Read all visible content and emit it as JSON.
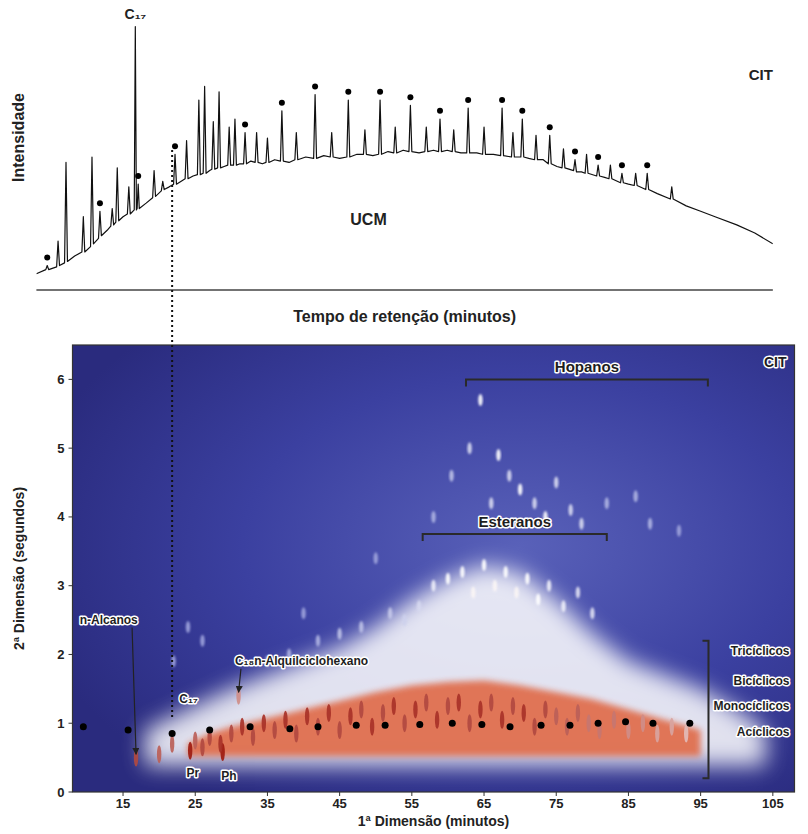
{
  "chart_data": [
    {
      "type": "line",
      "title": "CIT",
      "ylabel": "Intensidade",
      "xlabel": "Tempo de retenção (minutos)",
      "xlim": [
        3,
        105
      ],
      "ylim": [
        0,
        105
      ],
      "tick_labels": false,
      "grid": false,
      "series": [
        {
          "type": "line",
          "color": "#111111",
          "x": [
            3,
            4.3,
            4.5,
            4.7,
            5.8,
            6.0,
            6.2,
            6.9,
            7.1,
            7.3,
            8.3,
            9.3,
            9.5,
            9.7,
            10.5,
            10.7,
            10.9,
            11.6,
            11.8,
            12.0,
            12.8,
            13.3,
            13.5,
            13.7,
            14.0,
            14.2,
            14.4,
            15.0,
            15.6,
            15.8,
            16.0,
            16.55,
            16.7,
            16.85,
            16.95,
            17.1,
            17.25,
            18.2,
            19.1,
            19.3,
            19.5,
            20.3,
            20.5,
            20.7,
            21.4,
            22.0,
            22.2,
            22.4,
            23.0,
            23.6,
            23.8,
            24.0,
            24.7,
            25.3,
            25.5,
            25.7,
            26.1,
            26.3,
            26.5,
            27.0,
            27.3,
            27.5,
            27.7,
            28.1,
            28.3,
            28.5,
            29.0,
            29.5,
            29.7,
            29.9,
            30.3,
            30.5,
            30.7,
            31.2,
            31.7,
            31.9,
            32.1,
            32.7,
            33.3,
            33.5,
            33.7,
            34.3,
            34.8,
            35.0,
            35.2,
            36.0,
            36.8,
            37.0,
            37.2,
            38.0,
            38.8,
            39.0,
            39.2,
            40.3,
            41.4,
            41.6,
            41.8,
            42.8,
            43.7,
            43.9,
            44.1,
            45.0,
            46.0,
            46.2,
            46.4,
            47.4,
            48.3,
            48.5,
            48.7,
            49.6,
            50.4,
            50.6,
            50.8,
            51.7,
            52.5,
            52.7,
            52.9,
            53.8,
            54.6,
            54.8,
            55.0,
            56.0,
            56.8,
            57.0,
            57.2,
            58.0,
            58.7,
            58.9,
            59.1,
            59.9,
            60.6,
            60.8,
            61.0,
            61.8,
            62.6,
            62.8,
            63.0,
            64.0,
            64.8,
            65.0,
            65.2,
            66.3,
            67.3,
            67.5,
            67.7,
            68.8,
            69.0,
            69.2,
            70.1,
            70.3,
            70.5,
            71.2,
            72.0,
            72.2,
            72.4,
            73.2,
            73.9,
            74.1,
            74.3,
            75.1,
            75.8,
            76.0,
            76.2,
            77.4,
            77.6,
            77.8,
            78.5,
            79.0,
            79.2,
            79.4,
            80.6,
            80.8,
            81.0,
            81.7,
            82.3,
            82.5,
            82.7,
            83.9,
            84.1,
            84.3,
            85.0,
            85.8,
            86.0,
            86.2,
            87.4,
            87.6,
            87.8,
            89.0,
            90.8,
            91.0,
            91.2,
            93.0,
            95,
            97,
            100,
            102.5,
            105
          ],
          "values": [
            6,
            7.5,
            9,
            7.5,
            8.5,
            18,
            9,
            10,
            47,
            10.5,
            12.5,
            14,
            27,
            14,
            16,
            49,
            17,
            19,
            29,
            20,
            22,
            23.5,
            30,
            24,
            25,
            45,
            25.5,
            27,
            28,
            38,
            28,
            29.5,
            97,
            29.5,
            30,
            39,
            30,
            32,
            34,
            44,
            34.5,
            36.5,
            40,
            37,
            38,
            39,
            50,
            39,
            40,
            41,
            55,
            41,
            42,
            42.5,
            70,
            42.5,
            43,
            75,
            43,
            44,
            44.5,
            62,
            44.5,
            45,
            73,
            45,
            45.5,
            46,
            60,
            46,
            46,
            63,
            46,
            46.5,
            46.5,
            58,
            46.5,
            47.5,
            47,
            58,
            47,
            46.5,
            47,
            56,
            47,
            48,
            47.5,
            66,
            47.5,
            47,
            48,
            58,
            48,
            49,
            48.5,
            72,
            48.5,
            49.5,
            49,
            58,
            49,
            48.5,
            49,
            70,
            49,
            50,
            50,
            59,
            50,
            49.5,
            50,
            70,
            50,
            51,
            50.5,
            60,
            50.5,
            51.5,
            51,
            68,
            51,
            50.5,
            51,
            60,
            51,
            51.5,
            51,
            63,
            51,
            51.5,
            51,
            59,
            51,
            50.5,
            50.5,
            67,
            50.5,
            50.5,
            50,
            60,
            50,
            50,
            49.5,
            67,
            49.5,
            49,
            58,
            49,
            49,
            63,
            49,
            48.5,
            48,
            57,
            48,
            48,
            46.5,
            57,
            46.5,
            45.5,
            45,
            52,
            45,
            44,
            48,
            43.5,
            43.5,
            43,
            50,
            43,
            42,
            46,
            42,
            41.5,
            41,
            46,
            41,
            39.5,
            43,
            39.5,
            39,
            38.5,
            43,
            38.5,
            37,
            43,
            37,
            35.5,
            33.5,
            38,
            33.5,
            31,
            29,
            27,
            24,
            21,
            17
          ]
        },
        {
          "type": "scatter",
          "marker": "circle",
          "color": "#000000",
          "x": [
            4.5,
            11.8,
            17.1,
            22.2,
            31.9,
            37.0,
            41.6,
            46.2,
            50.6,
            54.8,
            58.9,
            62.8,
            67.5,
            70.3,
            74.1,
            77.6,
            80.8,
            84.1,
            87.6
          ],
          "values": [
            12,
            32,
            42,
            53,
            61,
            69,
            75,
            73,
            73,
            71,
            66,
            70,
            70,
            66,
            60,
            51,
            49,
            46,
            46
          ]
        }
      ],
      "annotations": [
        {
          "text": "C₁₇",
          "x": 16.7,
          "y": 100
        },
        {
          "text": "UCM",
          "x": 49,
          "y": 24
        }
      ],
      "dotted_line_x": 21.8
    },
    {
      "type": "scatter",
      "title": "CIT",
      "xlabel": "1ª Dimensão (minutos)",
      "ylabel": "2ª Dimensão (segundos)",
      "xlim": [
        8,
        108
      ],
      "ylim": [
        0,
        6.5
      ],
      "xticks": [
        15,
        25,
        35,
        45,
        55,
        65,
        75,
        85,
        95,
        105
      ],
      "yticks": [
        0,
        1,
        2,
        3,
        4,
        5,
        6
      ],
      "zlim": [
        0,
        1
      ],
      "grid": false,
      "series": [
        {
          "type": "area",
          "color": "#ffffff",
          "x": [
            18,
            22,
            26,
            30,
            35,
            40,
            45,
            50,
            55,
            60,
            65,
            70,
            75,
            80,
            85,
            90,
            95,
            100,
            104
          ],
          "values": [
            0.9,
            1.1,
            1.3,
            1.5,
            1.7,
            1.9,
            2.1,
            2.4,
            2.8,
            3.1,
            3.3,
            3.2,
            2.8,
            2.3,
            1.9,
            1.7,
            1.5,
            1.2,
            0.9
          ],
          "base": [
            0.38,
            0.38,
            0.38,
            0.38,
            0.38,
            0.38,
            0.38,
            0.38,
            0.38,
            0.38,
            0.38,
            0.38,
            0.38,
            0.38,
            0.38,
            0.38,
            0.38,
            0.38,
            0.38
          ]
        },
        {
          "type": "area",
          "color": "#e0704f",
          "x": [
            24,
            27,
            30,
            34,
            38,
            42,
            46,
            50,
            55,
            60,
            65,
            70,
            75,
            80,
            85,
            90,
            95
          ],
          "values": [
            0.7,
            0.85,
            0.95,
            1.05,
            1.15,
            1.25,
            1.35,
            1.45,
            1.55,
            1.6,
            1.62,
            1.55,
            1.45,
            1.35,
            1.2,
            1.05,
            0.9
          ],
          "base": [
            0.52,
            0.52,
            0.52,
            0.52,
            0.52,
            0.52,
            0.52,
            0.52,
            0.52,
            0.52,
            0.52,
            0.52,
            0.52,
            0.52,
            0.52,
            0.52,
            0.52
          ]
        },
        {
          "type": "scatter",
          "marker": "streak",
          "x": [
            16.8,
            20,
            21.8,
            24.3,
            26,
            28.8,
            31,
            25,
            27,
            28.5,
            30,
            31.5,
            33,
            34.5,
            36,
            37.5,
            39,
            40.5,
            42,
            43.5,
            45,
            46.5,
            48,
            49.5,
            51,
            52.5,
            54,
            55.5,
            57,
            58.5,
            60,
            61.5,
            63,
            64.5,
            66,
            67.5,
            69,
            70.5,
            72,
            73.5,
            75,
            76.5,
            78,
            79.5,
            81,
            83,
            85,
            87,
            89,
            91,
            93,
            58,
            60,
            62,
            63.5,
            65,
            66.5,
            68,
            69.5,
            71,
            72.5,
            74,
            76,
            78,
            80,
            56,
            54,
            52,
            48,
            45,
            42,
            38,
            35,
            22,
            24,
            26,
            40,
            50,
            63,
            64.5,
            66,
            67,
            68.5,
            70,
            72,
            73.5,
            75,
            77,
            78.5,
            82,
            86,
            88,
            60.5,
            58,
            92
          ],
          "values": [
            0.5,
            0.55,
            0.7,
            0.6,
            0.65,
            0.58,
            1.4,
            0.75,
            0.8,
            0.7,
            0.85,
            0.95,
            0.8,
            1.0,
            0.9,
            1.05,
            0.85,
            1.1,
            0.95,
            1.15,
            0.9,
            1.1,
            1.2,
            0.95,
            1.15,
            1.25,
            1.0,
            1.2,
            1.3,
            1.05,
            1.25,
            1.3,
            1.0,
            1.2,
            1.3,
            1.05,
            1.25,
            1.15,
            0.95,
            1.2,
            1.1,
            0.95,
            1.15,
            1.0,
            0.9,
            1.05,
            0.9,
            1.0,
            0.85,
            0.95,
            0.85,
            3.0,
            3.1,
            3.2,
            2.9,
            3.3,
            3.0,
            3.2,
            2.9,
            3.1,
            2.8,
            3.0,
            2.7,
            2.9,
            2.6,
            2.7,
            2.5,
            2.6,
            2.4,
            2.3,
            2.2,
            2.0,
            1.9,
            1.9,
            2.4,
            2.2,
            2.6,
            3.4,
            5.0,
            5.7,
            4.2,
            4.9,
            4.6,
            4.4,
            4.2,
            4.0,
            4.5,
            4.1,
            3.9,
            4.2,
            4.3,
            3.9,
            4.6,
            4.0,
            3.8
          ],
          "intensity": [
            0.9,
            0.85,
            0.85,
            1.0,
            0.9,
            1.0,
            0.75,
            0.85,
            0.9,
            0.95,
            0.9,
            0.95,
            0.9,
            0.95,
            0.9,
            0.95,
            0.9,
            0.95,
            0.9,
            0.95,
            0.9,
            0.95,
            0.9,
            0.95,
            0.9,
            0.95,
            0.9,
            0.95,
            0.9,
            0.95,
            0.9,
            0.95,
            0.9,
            0.95,
            0.9,
            0.95,
            0.9,
            0.95,
            0.9,
            0.9,
            0.85,
            0.85,
            0.85,
            0.8,
            0.8,
            0.8,
            0.75,
            0.75,
            0.7,
            0.7,
            0.65,
            0.48,
            0.5,
            0.5,
            0.52,
            0.5,
            0.52,
            0.5,
            0.52,
            0.5,
            0.5,
            0.48,
            0.48,
            0.46,
            0.46,
            0.45,
            0.44,
            0.43,
            0.42,
            0.42,
            0.4,
            0.4,
            0.4,
            0.38,
            0.38,
            0.38,
            0.38,
            0.38,
            0.45,
            0.5,
            0.45,
            0.5,
            0.45,
            0.5,
            0.45,
            0.5,
            0.45,
            0.45,
            0.45,
            0.4,
            0.4,
            0.4,
            0.42,
            0.4,
            0.38
          ]
        },
        {
          "type": "scatter",
          "marker": "circle",
          "color": "#000000",
          "x": [
            9.5,
            15.7,
            21.8,
            27.0,
            32.6,
            38.1,
            42.0,
            47.3,
            51.3,
            56.1,
            60.6,
            64.7,
            68.6,
            72.9,
            76.9,
            80.8,
            84.6,
            88.4,
            93.5
          ],
          "values": [
            0.95,
            0.9,
            0.85,
            0.9,
            0.95,
            0.92,
            0.95,
            0.97,
            0.97,
            0.98,
            1.0,
            0.98,
            0.95,
            0.97,
            0.97,
            1.0,
            1.02,
            1.0,
            1.0
          ]
        }
      ],
      "annotations": [
        {
          "text": "n-Alcanos",
          "x": 9,
          "y": 2.45,
          "to": [
            16.8,
            0.55
          ]
        },
        {
          "text": "C₁₇",
          "x": 22.8,
          "y": 1.3
        },
        {
          "text": "C₁₈n-Alquilciclohexano",
          "x": 30.5,
          "y": 1.85,
          "to": [
            31,
            1.45
          ]
        },
        {
          "text": "Pr",
          "x": 23.8,
          "y": 0.22
        },
        {
          "text": "Ph",
          "x": 28.6,
          "y": 0.18
        }
      ],
      "brackets": [
        {
          "text": "Hopanos",
          "x": [
            62.5,
            96
          ],
          "y": 6.0
        },
        {
          "text": "Esteranos",
          "x": [
            56.5,
            82
          ],
          "y": 3.75
        },
        {
          "y": [
            0.2,
            2.2
          ],
          "labels": [
            {
              "text": "Tricíclicos",
              "y": 2.05
            },
            {
              "text": "Bicíclicos",
              "y": 1.62
            },
            {
              "text": "Monocíclicos",
              "y": 1.25
            },
            {
              "text": "Acíclicos",
              "y": 0.88
            }
          ]
        }
      ]
    }
  ]
}
